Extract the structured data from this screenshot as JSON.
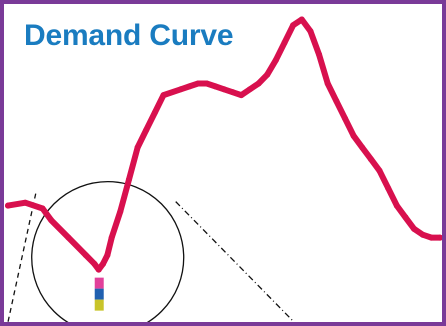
{
  "chart_data": {
    "type": "line",
    "title": "Demand Curve",
    "xlabel": "",
    "ylabel": "",
    "grid": false,
    "legend": "none",
    "x": [
      0,
      4,
      8,
      10,
      14,
      18,
      20,
      21,
      22,
      23,
      24,
      26,
      28,
      30,
      32,
      34,
      36,
      40,
      42,
      44,
      46,
      48,
      50,
      52,
      54,
      56,
      58,
      60,
      62,
      64,
      66,
      68,
      70,
      72,
      74,
      76,
      78,
      80,
      82,
      84,
      86,
      88,
      90,
      92,
      94,
      96,
      98,
      100
    ],
    "y": [
      0.4,
      0.41,
      0.39,
      0.35,
      0.29,
      0.23,
      0.2,
      0.18,
      0.2,
      0.23,
      0.29,
      0.38,
      0.49,
      0.6,
      0.66,
      0.72,
      0.78,
      0.8,
      0.81,
      0.82,
      0.82,
      0.81,
      0.8,
      0.79,
      0.78,
      0.8,
      0.82,
      0.85,
      0.9,
      0.96,
      1.02,
      1.04,
      1.0,
      0.92,
      0.82,
      0.76,
      0.7,
      0.64,
      0.6,
      0.56,
      0.52,
      0.46,
      0.4,
      0.36,
      0.32,
      0.3,
      0.29,
      0.29
    ],
    "xlim": [
      0,
      100
    ],
    "ylim": [
      0,
      1.1
    ],
    "colors": {
      "line": "#d8104e",
      "title": "#1a7cc0",
      "frame": "#7a3a98",
      "magnifier": "#111111",
      "marker_stack": [
        "#e2409a",
        "#2060b0",
        "#c8c42a"
      ]
    },
    "annotations": {
      "magnifier_circle": true,
      "dashed_guides": true,
      "minimum_marker": true
    }
  }
}
